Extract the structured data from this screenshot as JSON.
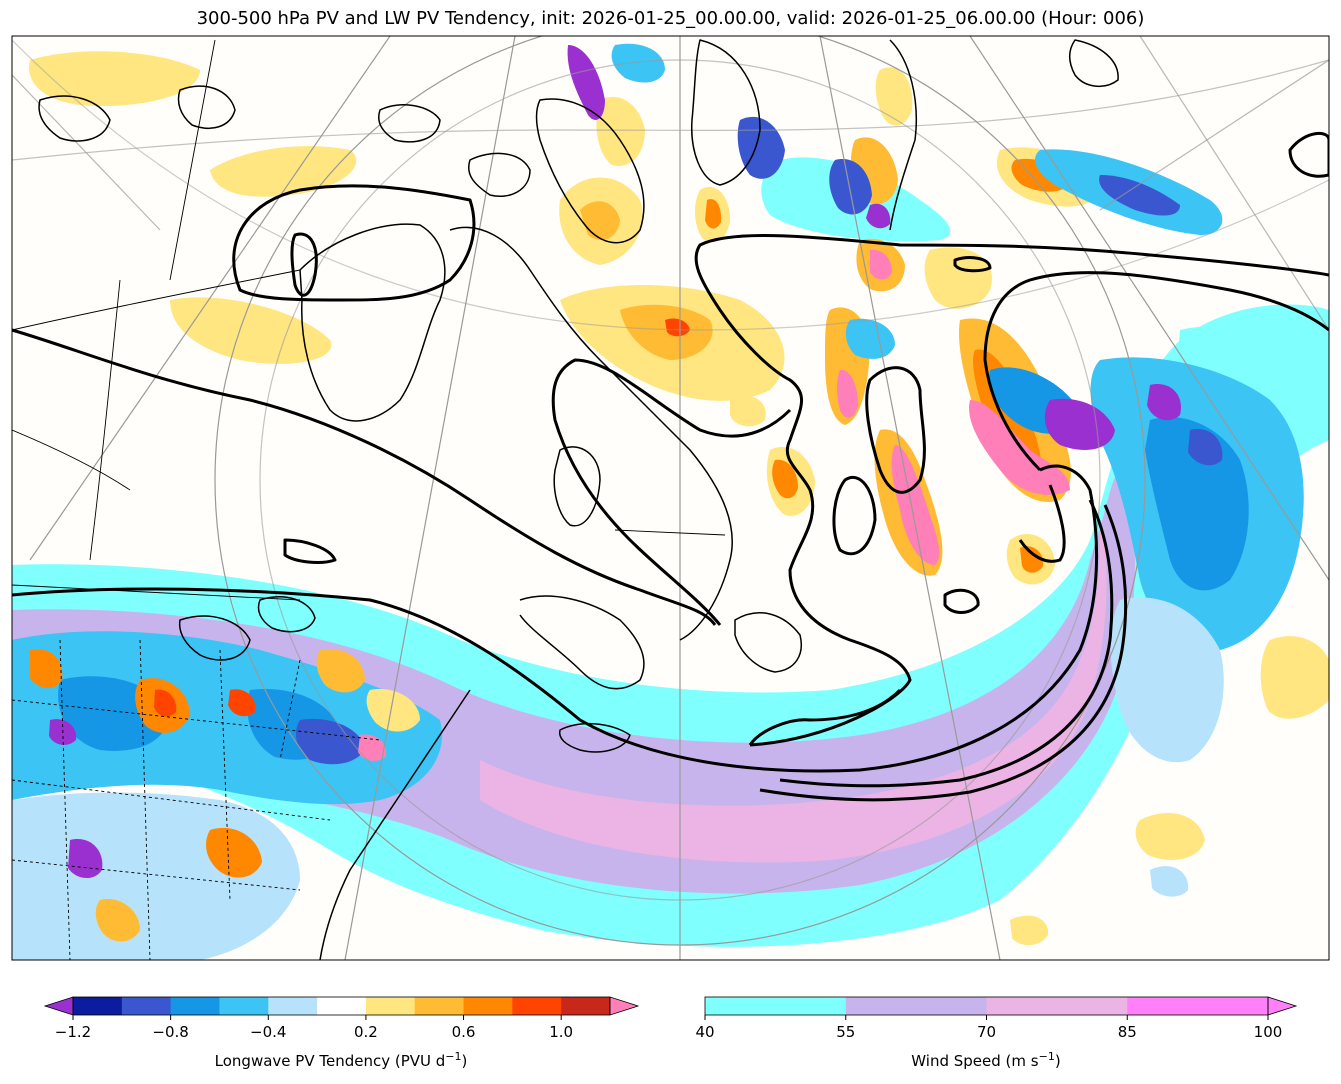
{
  "title": "300-500 hPa PV and LW PV Tendency, init: 2026-01-25_00.00.00, valid: 2026-01-25_06.00.00 (Hour: 006)",
  "colorbars": {
    "pv_tendency": {
      "label": "Longwave PV Tendency (PVU d",
      "label_exp": "−1",
      "label_close": ")",
      "ticks": [
        "−1.2",
        "−0.8",
        "−0.4",
        "0.2",
        "0.6",
        "1.0"
      ],
      "colors": [
        "#0b1c9e",
        "#3a57d0",
        "#1597e6",
        "#3cc4f4",
        "#b6e3fb",
        "#ffffff",
        "#ffe680",
        "#ffbb33",
        "#ff8800",
        "#ff4400",
        "#c8281a"
      ],
      "under_color": "#9b30d0",
      "over_color": "#ff7fb8"
    },
    "wind_speed": {
      "label": "Wind Speed (m s",
      "label_exp": "−1",
      "label_close": ")",
      "ticks": [
        "40",
        "55",
        "70",
        "85",
        "100"
      ],
      "colors": [
        "#80ffff",
        "#c8b4ec",
        "#ecb4e4",
        "#ff80f8"
      ]
    }
  },
  "map": {
    "background": "#fffefb",
    "jet_colors": [
      "#80ffff",
      "#c8b4ec",
      "#ecb4e4"
    ],
    "pv_contour_color": "#000000",
    "coast_color": "#000000",
    "grid_color": "#999999"
  }
}
